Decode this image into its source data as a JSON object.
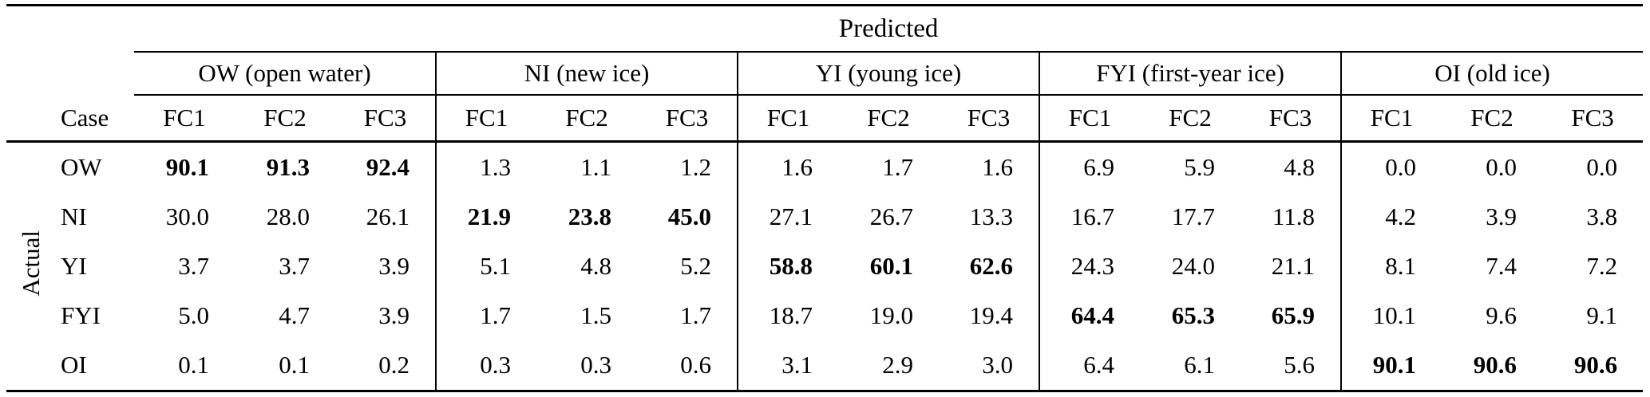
{
  "page": {
    "background_color": "#ffffff",
    "text_color": "#000000"
  },
  "table": {
    "predicted_label": "Predicted",
    "actual_label": "Actual",
    "case_label": "Case",
    "groups": [
      {
        "label": "OW (open water)"
      },
      {
        "label": "NI (new ice)"
      },
      {
        "label": "YI (young ice)"
      },
      {
        "label": "FYI (first-year ice)"
      },
      {
        "label": "OI (old ice)"
      }
    ],
    "subcols": [
      "FC1",
      "FC2",
      "FC3"
    ],
    "rows": [
      {
        "case": "OW",
        "values": [
          "90.1",
          "91.3",
          "92.4",
          "1.3",
          "1.1",
          "1.2",
          "1.6",
          "1.7",
          "1.6",
          "6.9",
          "5.9",
          "4.8",
          "0.0",
          "0.0",
          "0.0"
        ],
        "bold_indices": [
          0,
          1,
          2
        ]
      },
      {
        "case": "NI",
        "values": [
          "30.0",
          "28.0",
          "26.1",
          "21.9",
          "23.8",
          "45.0",
          "27.1",
          "26.7",
          "13.3",
          "16.7",
          "17.7",
          "11.8",
          "4.2",
          "3.9",
          "3.8"
        ],
        "bold_indices": [
          3,
          4,
          5
        ]
      },
      {
        "case": "YI",
        "values": [
          "3.7",
          "3.7",
          "3.9",
          "5.1",
          "4.8",
          "5.2",
          "58.8",
          "60.1",
          "62.6",
          "24.3",
          "24.0",
          "21.1",
          "8.1",
          "7.4",
          "7.2"
        ],
        "bold_indices": [
          6,
          7,
          8
        ]
      },
      {
        "case": "FYI",
        "values": [
          "5.0",
          "4.7",
          "3.9",
          "1.7",
          "1.5",
          "1.7",
          "18.7",
          "19.0",
          "19.4",
          "64.4",
          "65.3",
          "65.9",
          "10.1",
          "9.6",
          "9.1"
        ],
        "bold_indices": [
          9,
          10,
          11
        ]
      },
      {
        "case": "OI",
        "values": [
          "0.1",
          "0.1",
          "0.2",
          "0.3",
          "0.3",
          "0.6",
          "3.1",
          "2.9",
          "3.0",
          "6.4",
          "6.1",
          "5.6",
          "90.1",
          "90.6",
          "90.6"
        ],
        "bold_indices": [
          12,
          13,
          14
        ]
      }
    ]
  }
}
